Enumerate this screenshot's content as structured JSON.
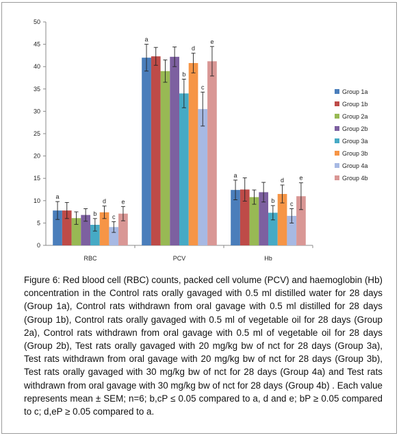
{
  "caption": "Figure 6: Red blood cell (RBC) counts, packed cell volume (PCV) and haemoglobin (Hb) concentration in the Control rats orally gavaged with 0.5 ml distilled water for 28 days (Group 1a), Control rats withdrawn from oral gavage with 0.5 ml distilled for 28 days (Group 1b), Control rats orally gavaged with 0.5 ml of vegetable oil for 28 days (Group 2a), Control rats withdrawn from oral gavage with 0.5 ml of vegetable oil for 28 days (Group 2b), Test rats orally gavaged with 20 mg/kg bw of nct for 28 days (Group 3a), Test rats withdrawn from oral gavage with 20 mg/kg bw of nct for 28 days (Group 3b), Test rats orally gavaged with 30 mg/kg bw of nct for 28 days (Group 4a) and Test rats withdrawn from oral gavage with 30 mg/kg bw of nct for 28 days (Group 4b) . Each value represents mean ± SEM; n=6; b,cP ≤ 0.05 compared to a, d and e; bP ≥ 0.05 compared to c; d,eP ≥ 0.05 compared to a.",
  "chart_data": {
    "type": "bar",
    "title": "",
    "xlabel": "",
    "ylabel": "",
    "ylim": [
      0,
      50
    ],
    "yticks": [
      "0",
      "5",
      "10",
      "15",
      "20",
      "25",
      "30",
      "35",
      "40",
      "45",
      "50"
    ],
    "grid": false,
    "legend": "right",
    "categories": [
      "RBC",
      "PCV",
      "Hb"
    ],
    "series": [
      {
        "name": "Group 1a",
        "color": "#4a7ebb",
        "values": [
          7.8,
          42.0,
          12.4
        ],
        "errors": [
          2.0,
          3.0,
          2.2
        ],
        "labels": [
          "a",
          "a",
          "a"
        ]
      },
      {
        "name": "Group 1b",
        "color": "#be4b48",
        "values": [
          7.8,
          42.3,
          12.5
        ],
        "errors": [
          1.8,
          2.0,
          2.6
        ],
        "labels": [
          "",
          "",
          ""
        ]
      },
      {
        "name": "Group 2a",
        "color": "#98b954",
        "values": [
          6.1,
          39.0,
          10.8
        ],
        "errors": [
          1.4,
          2.5,
          1.6
        ],
        "labels": [
          "",
          "",
          ""
        ]
      },
      {
        "name": "Group 2b",
        "color": "#7d60a0",
        "values": [
          6.8,
          42.2,
          11.9
        ],
        "errors": [
          1.4,
          2.2,
          2.2
        ],
        "labels": [
          "",
          "",
          ""
        ]
      },
      {
        "name": "Group 3a",
        "color": "#46aac5",
        "values": [
          4.6,
          34.0,
          7.3
        ],
        "errors": [
          1.4,
          3.2,
          1.6
        ],
        "labels": [
          "b",
          "b",
          "b"
        ]
      },
      {
        "name": "Group 3b",
        "color": "#f69546",
        "values": [
          7.4,
          40.8,
          11.5
        ],
        "errors": [
          1.4,
          2.2,
          2.0
        ],
        "labels": [
          "d",
          "d",
          "d"
        ]
      },
      {
        "name": "Group 4a",
        "color": "#a7b9e3",
        "values": [
          4.1,
          30.5,
          6.6
        ],
        "errors": [
          1.2,
          3.8,
          1.6
        ],
        "labels": [
          "c",
          "c",
          "c"
        ]
      },
      {
        "name": "Group 4b",
        "color": "#d99795",
        "values": [
          7.1,
          41.2,
          11.0
        ],
        "errors": [
          1.6,
          3.3,
          3.0
        ],
        "labels": [
          "e",
          "e",
          "e"
        ]
      }
    ]
  }
}
